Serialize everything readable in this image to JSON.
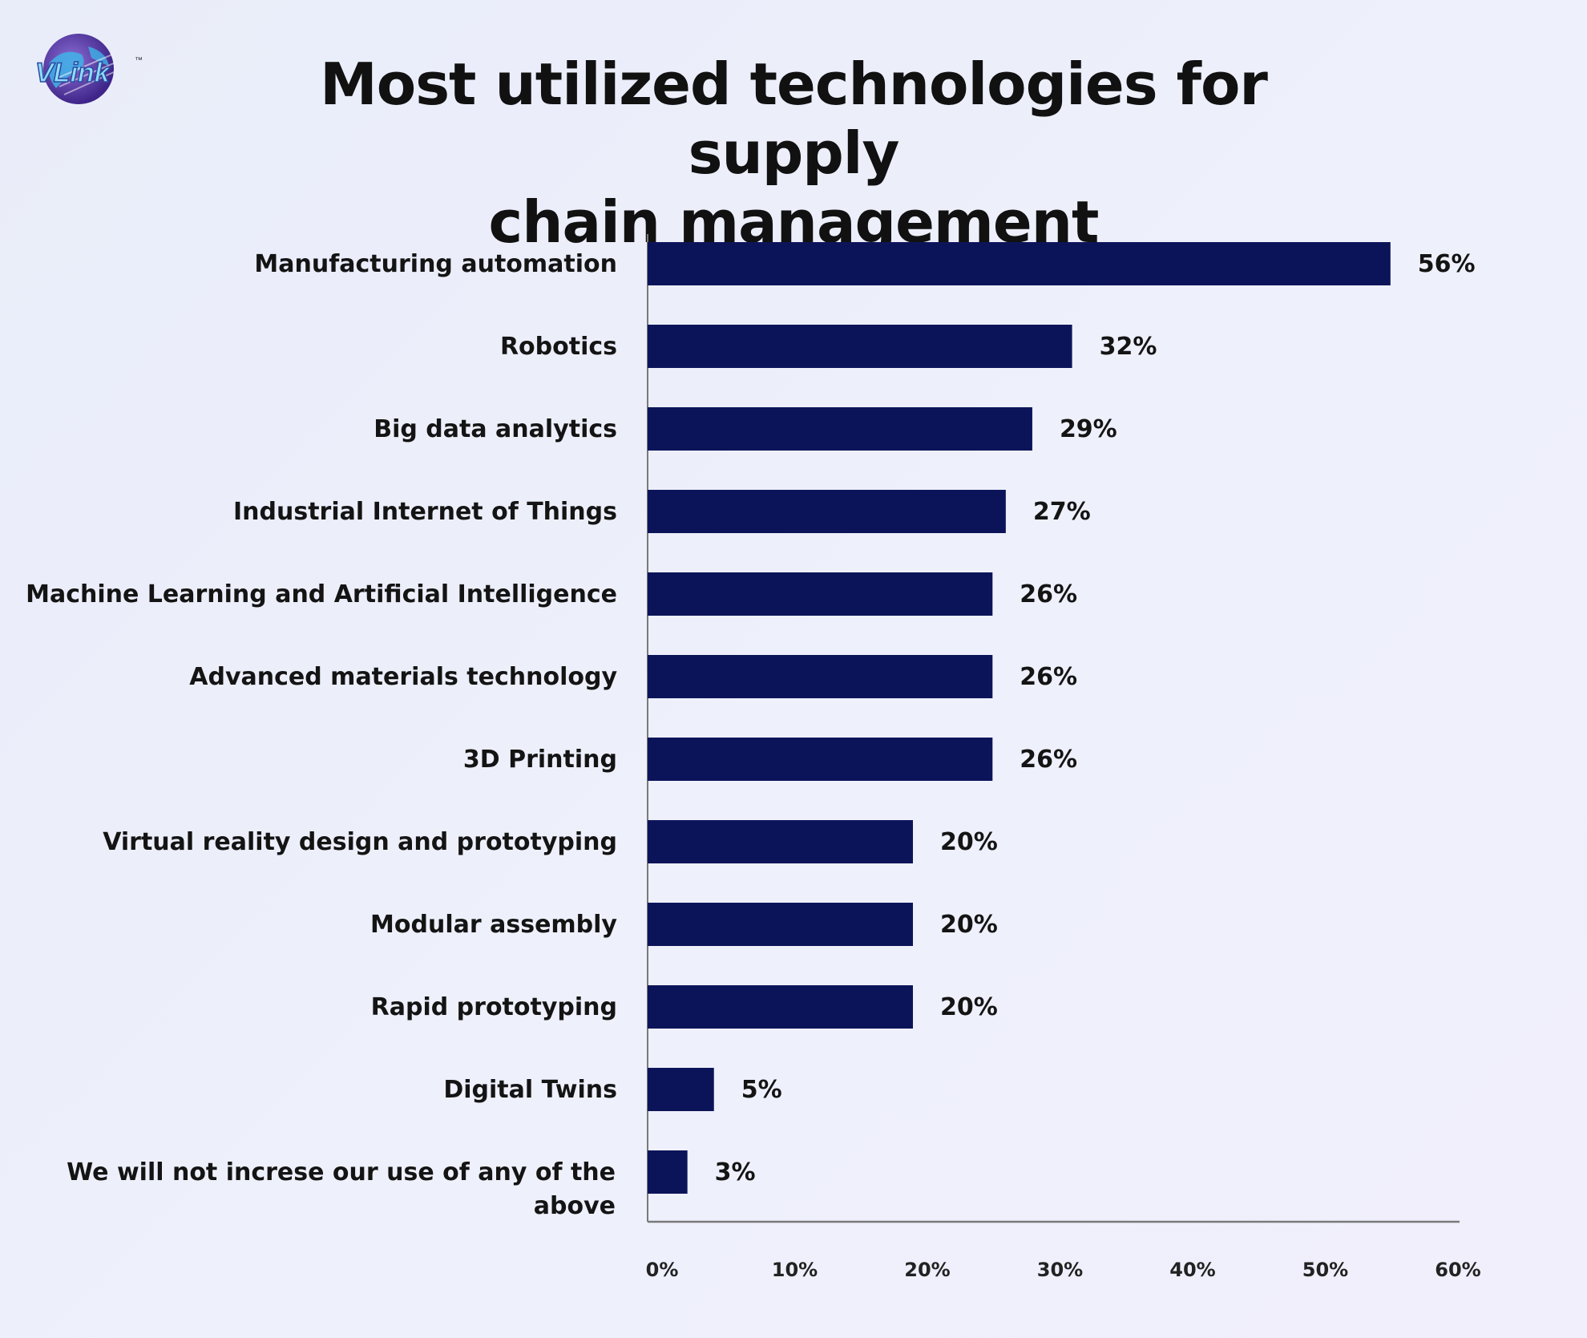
{
  "brand": {
    "logo_text": "VLink"
  },
  "title_lines": [
    "Most utilized technologies for supply",
    "chain management"
  ],
  "colors": {
    "bar": "#0c1459",
    "axis": "#7a7a7a",
    "logo_globe": "#5b3aa8",
    "logo_text": "#7fd3f5"
  },
  "chart_data": {
    "type": "bar",
    "orientation": "horizontal",
    "title": "Most utilized technologies for supply chain management",
    "categories": [
      "Manufacturing automation",
      "Robotics",
      "Big data analytics",
      "Industrial Internet of Things",
      "Machine Learning and Artificial Intelligence",
      "Advanced materials technology",
      "3D Printing",
      "Virtual reality design and prototyping",
      "Modular assembly",
      "Rapid prototyping",
      "Digital Twins",
      "We will not increse our use of any of the above"
    ],
    "values": [
      56,
      32,
      29,
      27,
      26,
      26,
      26,
      20,
      20,
      20,
      5,
      3
    ],
    "value_labels": [
      "56%",
      "32%",
      "29%",
      "27%",
      "26%",
      "26%",
      "26%",
      "20%",
      "20%",
      "20%",
      "5%",
      "3%"
    ],
    "xticks": [
      "0%",
      "10%",
      "20%",
      "30%",
      "40%",
      "50%",
      "60%"
    ],
    "xlim": [
      0,
      60
    ],
    "grid": false,
    "legend": "none"
  }
}
